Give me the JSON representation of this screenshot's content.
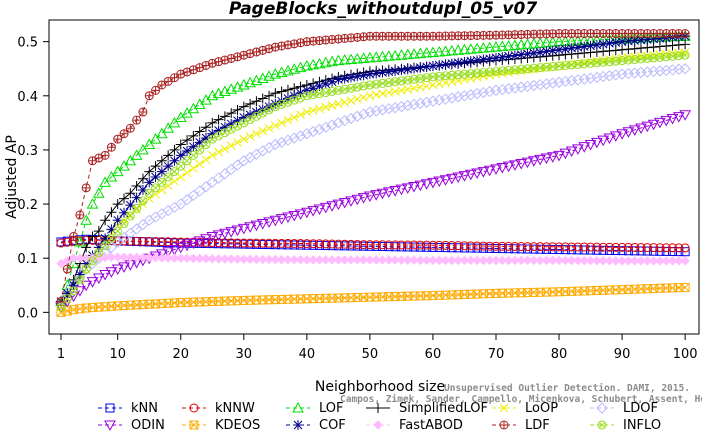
{
  "chart_data": {
    "type": "line",
    "title": "PageBlocks_withoutdupl_05_v07",
    "xlabel": "Neighborhood size",
    "ylabel": "Adjusted AP",
    "xlim": [
      1,
      100
    ],
    "ylim": [
      -0.04,
      0.54
    ],
    "xticks": [
      1,
      10,
      20,
      30,
      40,
      50,
      60,
      70,
      80,
      90,
      100
    ],
    "yticks": [
      0.0,
      0.1,
      0.2,
      0.3,
      0.4,
      0.5
    ],
    "ytick_labels": [
      "0.0",
      "0.1",
      "0.2",
      "0.3",
      "0.4",
      "0.5"
    ],
    "grid": false,
    "legend_position": "bottom",
    "watermark": {
      "line1": "Unsupervised Outlier Detection. DAMI, 2015.",
      "line2": "Campos, Zimek, Sander, Campello, Micenkova, Schubert, Assent, Houle"
    },
    "series": [
      {
        "name": "kNN",
        "color": "#0000ee",
        "marker": "square",
        "dash": "4,3",
        "points": [
          [
            1,
            0.13
          ],
          [
            3,
            0.133
          ],
          [
            5,
            0.135
          ],
          [
            7,
            0.134
          ],
          [
            10,
            0.132
          ],
          [
            15,
            0.13
          ],
          [
            20,
            0.128
          ],
          [
            30,
            0.126
          ],
          [
            40,
            0.124
          ],
          [
            50,
            0.122
          ],
          [
            60,
            0.12
          ],
          [
            70,
            0.118
          ],
          [
            80,
            0.116
          ],
          [
            90,
            0.114
          ],
          [
            100,
            0.112
          ]
        ]
      },
      {
        "name": "kNNW",
        "color": "#dd0000",
        "marker": "circle",
        "dash": "4,3",
        "points": [
          [
            1,
            0.128
          ],
          [
            3,
            0.131
          ],
          [
            5,
            0.133
          ],
          [
            7,
            0.133
          ],
          [
            10,
            0.132
          ],
          [
            15,
            0.131
          ],
          [
            20,
            0.13
          ],
          [
            30,
            0.128
          ],
          [
            40,
            0.127
          ],
          [
            50,
            0.125
          ],
          [
            60,
            0.124
          ],
          [
            70,
            0.122
          ],
          [
            80,
            0.121
          ],
          [
            90,
            0.12
          ],
          [
            100,
            0.119
          ]
        ]
      },
      {
        "name": "LOF",
        "color": "#00dd00",
        "marker": "triangle-up",
        "dash": "4,3",
        "points": [
          [
            1,
            0.02
          ],
          [
            2,
            0.05
          ],
          [
            3,
            0.09
          ],
          [
            4,
            0.13
          ],
          [
            5,
            0.17
          ],
          [
            6,
            0.2
          ],
          [
            7,
            0.22
          ],
          [
            8,
            0.24
          ],
          [
            10,
            0.26
          ],
          [
            12,
            0.28
          ],
          [
            15,
            0.31
          ],
          [
            18,
            0.34
          ],
          [
            20,
            0.36
          ],
          [
            25,
            0.4
          ],
          [
            30,
            0.42
          ],
          [
            35,
            0.44
          ],
          [
            40,
            0.455
          ],
          [
            45,
            0.465
          ],
          [
            50,
            0.47
          ],
          [
            60,
            0.48
          ],
          [
            70,
            0.49
          ],
          [
            80,
            0.5
          ],
          [
            90,
            0.505
          ],
          [
            100,
            0.51
          ]
        ]
      },
      {
        "name": "SimplifiedLOF",
        "color": "#000000",
        "marker": "plus",
        "dash": "",
        "points": [
          [
            1,
            0.02
          ],
          [
            2,
            0.03
          ],
          [
            3,
            0.06
          ],
          [
            4,
            0.09
          ],
          [
            5,
            0.12
          ],
          [
            6,
            0.14
          ],
          [
            7,
            0.15
          ],
          [
            8,
            0.17
          ],
          [
            10,
            0.2
          ],
          [
            12,
            0.22
          ],
          [
            15,
            0.26
          ],
          [
            18,
            0.29
          ],
          [
            20,
            0.31
          ],
          [
            25,
            0.35
          ],
          [
            30,
            0.38
          ],
          [
            35,
            0.405
          ],
          [
            40,
            0.42
          ],
          [
            45,
            0.435
          ],
          [
            50,
            0.445
          ],
          [
            60,
            0.455
          ],
          [
            70,
            0.465
          ],
          [
            80,
            0.475
          ],
          [
            90,
            0.485
          ],
          [
            100,
            0.495
          ]
        ]
      },
      {
        "name": "LoOP",
        "color": "#eeee00",
        "marker": "x",
        "dash": "4,3",
        "points": [
          [
            1,
            0.01
          ],
          [
            3,
            0.04
          ],
          [
            5,
            0.08
          ],
          [
            7,
            0.12
          ],
          [
            10,
            0.16
          ],
          [
            15,
            0.21
          ],
          [
            20,
            0.25
          ],
          [
            25,
            0.29
          ],
          [
            30,
            0.32
          ],
          [
            35,
            0.345
          ],
          [
            40,
            0.37
          ],
          [
            45,
            0.385
          ],
          [
            50,
            0.4
          ],
          [
            60,
            0.42
          ],
          [
            70,
            0.44
          ],
          [
            80,
            0.455
          ],
          [
            90,
            0.47
          ],
          [
            100,
            0.48
          ]
        ]
      },
      {
        "name": "LDOF",
        "color": "#bbbbff",
        "marker": "diamond",
        "dash": "4,3",
        "points": [
          [
            1,
            0.02
          ],
          [
            3,
            0.05
          ],
          [
            5,
            0.08
          ],
          [
            7,
            0.1
          ],
          [
            10,
            0.13
          ],
          [
            15,
            0.17
          ],
          [
            20,
            0.2
          ],
          [
            25,
            0.24
          ],
          [
            30,
            0.28
          ],
          [
            35,
            0.31
          ],
          [
            40,
            0.33
          ],
          [
            45,
            0.35
          ],
          [
            50,
            0.37
          ],
          [
            60,
            0.39
          ],
          [
            70,
            0.41
          ],
          [
            80,
            0.425
          ],
          [
            90,
            0.44
          ],
          [
            100,
            0.45
          ]
        ]
      },
      {
        "name": "ODIN",
        "color": "#9900dd",
        "marker": "triangle-down",
        "dash": "4,3",
        "points": [
          [
            1,
            0.01
          ],
          [
            3,
            0.03
          ],
          [
            5,
            0.05
          ],
          [
            8,
            0.07
          ],
          [
            10,
            0.08
          ],
          [
            15,
            0.1
          ],
          [
            20,
            0.12
          ],
          [
            25,
            0.14
          ],
          [
            30,
            0.155
          ],
          [
            35,
            0.17
          ],
          [
            40,
            0.185
          ],
          [
            45,
            0.2
          ],
          [
            50,
            0.215
          ],
          [
            60,
            0.24
          ],
          [
            70,
            0.265
          ],
          [
            80,
            0.29
          ],
          [
            90,
            0.33
          ],
          [
            100,
            0.365
          ]
        ]
      },
      {
        "name": "KDEOS",
        "color": "#ffaa00",
        "marker": "asterisk",
        "dash": "4,3",
        "points": [
          [
            1,
            0.0
          ],
          [
            3,
            0.005
          ],
          [
            5,
            0.008
          ],
          [
            10,
            0.012
          ],
          [
            20,
            0.018
          ],
          [
            30,
            0.022
          ],
          [
            40,
            0.025
          ],
          [
            50,
            0.028
          ],
          [
            60,
            0.031
          ],
          [
            70,
            0.035
          ],
          [
            80,
            0.038
          ],
          [
            90,
            0.042
          ],
          [
            100,
            0.046
          ]
        ]
      },
      {
        "name": "COF",
        "color": "#000088",
        "marker": "star",
        "dash": "4,3",
        "points": [
          [
            1,
            0.02
          ],
          [
            3,
            0.05
          ],
          [
            5,
            0.09
          ],
          [
            7,
            0.12
          ],
          [
            10,
            0.17
          ],
          [
            15,
            0.24
          ],
          [
            20,
            0.29
          ],
          [
            25,
            0.33
          ],
          [
            30,
            0.36
          ],
          [
            35,
            0.385
          ],
          [
            40,
            0.41
          ],
          [
            45,
            0.43
          ],
          [
            50,
            0.44
          ],
          [
            60,
            0.455
          ],
          [
            70,
            0.47
          ],
          [
            80,
            0.485
          ],
          [
            90,
            0.5
          ],
          [
            100,
            0.51
          ]
        ]
      },
      {
        "name": "FastABOD",
        "color": "#ffbbff",
        "marker": "diamond-filled",
        "dash": "4,3",
        "points": [
          [
            1,
            0.09
          ],
          [
            3,
            0.1
          ],
          [
            5,
            0.1
          ],
          [
            10,
            0.102
          ],
          [
            20,
            0.1
          ],
          [
            30,
            0.098
          ],
          [
            40,
            0.097
          ],
          [
            50,
            0.097
          ],
          [
            60,
            0.096
          ],
          [
            70,
            0.096
          ],
          [
            80,
            0.096
          ],
          [
            90,
            0.095
          ],
          [
            100,
            0.095
          ]
        ]
      },
      {
        "name": "LDF",
        "color": "#aa2222",
        "marker": "circle-plus",
        "dash": "4,3",
        "points": [
          [
            1,
            0.02
          ],
          [
            2,
            0.08
          ],
          [
            3,
            0.14
          ],
          [
            4,
            0.18
          ],
          [
            5,
            0.23
          ],
          [
            6,
            0.28
          ],
          [
            8,
            0.29
          ],
          [
            10,
            0.32
          ],
          [
            12,
            0.34
          ],
          [
            14,
            0.37
          ],
          [
            15,
            0.4
          ],
          [
            17,
            0.42
          ],
          [
            20,
            0.44
          ],
          [
            25,
            0.46
          ],
          [
            30,
            0.475
          ],
          [
            35,
            0.49
          ],
          [
            40,
            0.5
          ],
          [
            45,
            0.505
          ],
          [
            50,
            0.51
          ],
          [
            60,
            0.51
          ],
          [
            70,
            0.512
          ],
          [
            80,
            0.515
          ],
          [
            90,
            0.515
          ],
          [
            100,
            0.515
          ]
        ]
      },
      {
        "name": "INFLO",
        "color": "#99dd22",
        "marker": "circle-x",
        "dash": "4,3",
        "points": [
          [
            1,
            0.01
          ],
          [
            3,
            0.04
          ],
          [
            5,
            0.08
          ],
          [
            7,
            0.11
          ],
          [
            10,
            0.15
          ],
          [
            15,
            0.22
          ],
          [
            20,
            0.27
          ],
          [
            25,
            0.32
          ],
          [
            30,
            0.35
          ],
          [
            35,
            0.38
          ],
          [
            40,
            0.4
          ],
          [
            45,
            0.41
          ],
          [
            50,
            0.42
          ],
          [
            60,
            0.435
          ],
          [
            70,
            0.445
          ],
          [
            80,
            0.455
          ],
          [
            90,
            0.465
          ],
          [
            100,
            0.475
          ]
        ]
      }
    ],
    "legend_rows": [
      [
        "kNN",
        "kNNW",
        "LOF",
        "SimplifiedLOF",
        "LoOP",
        "LDOF"
      ],
      [
        "ODIN",
        "KDEOS",
        "COF",
        "FastABOD",
        "LDF",
        "INFLO"
      ]
    ]
  }
}
